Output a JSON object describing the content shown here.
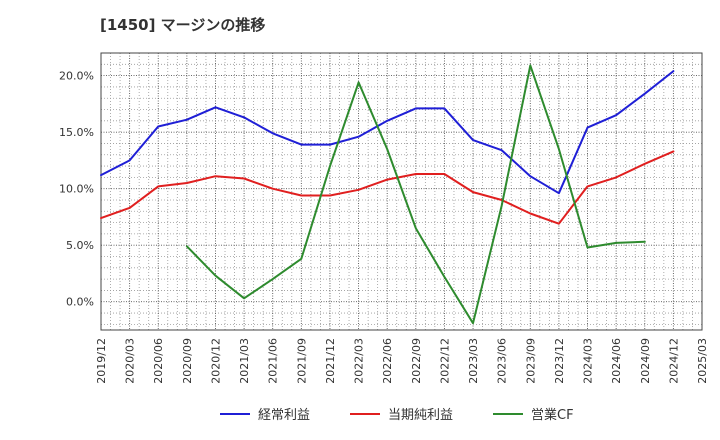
{
  "chart_data": {
    "type": "line",
    "title": "[1450]  マージンの推移",
    "x": [
      "2019/12",
      "2020/03",
      "2020/06",
      "2020/09",
      "2020/12",
      "2021/03",
      "2021/06",
      "2021/09",
      "2021/12",
      "2022/03",
      "2022/06",
      "2022/09",
      "2022/12",
      "2023/03",
      "2023/06",
      "2023/09",
      "2023/12",
      "2024/03",
      "2024/06",
      "2024/09",
      "2024/12",
      "2025/03"
    ],
    "y_ticks": [
      "20.0%",
      "15.0%",
      "10.0%",
      "5.0%",
      "0.0%"
    ],
    "y_tick_values": [
      20,
      15,
      10,
      5,
      0
    ],
    "ylim": [
      -2.5,
      22
    ],
    "grid": true,
    "legend_position": "bottom",
    "series": [
      {
        "name": "経常利益",
        "color": "#1f1fd6",
        "values": [
          11.2,
          12.5,
          15.5,
          16.1,
          17.2,
          16.3,
          14.9,
          13.9,
          13.9,
          14.6,
          16.0,
          17.1,
          17.1,
          14.3,
          13.4,
          11.1,
          9.6,
          15.4,
          16.5,
          18.4,
          20.4,
          null
        ]
      },
      {
        "name": "当期純利益",
        "color": "#e01f1f",
        "values": [
          7.4,
          8.3,
          10.2,
          10.5,
          11.1,
          10.9,
          10.0,
          9.4,
          9.4,
          9.9,
          10.8,
          11.3,
          11.3,
          9.7,
          9.0,
          7.8,
          6.9,
          10.2,
          11.0,
          12.2,
          13.3,
          null
        ]
      },
      {
        "name": "営業CF",
        "color": "#2e8b2e",
        "values": [
          null,
          null,
          null,
          4.9,
          2.3,
          0.3,
          2.0,
          3.8,
          12.0,
          19.4,
          13.5,
          6.5,
          2.2,
          -1.9,
          8.5,
          20.9,
          13.5,
          4.8,
          5.2,
          5.3,
          null,
          null
        ]
      }
    ]
  }
}
